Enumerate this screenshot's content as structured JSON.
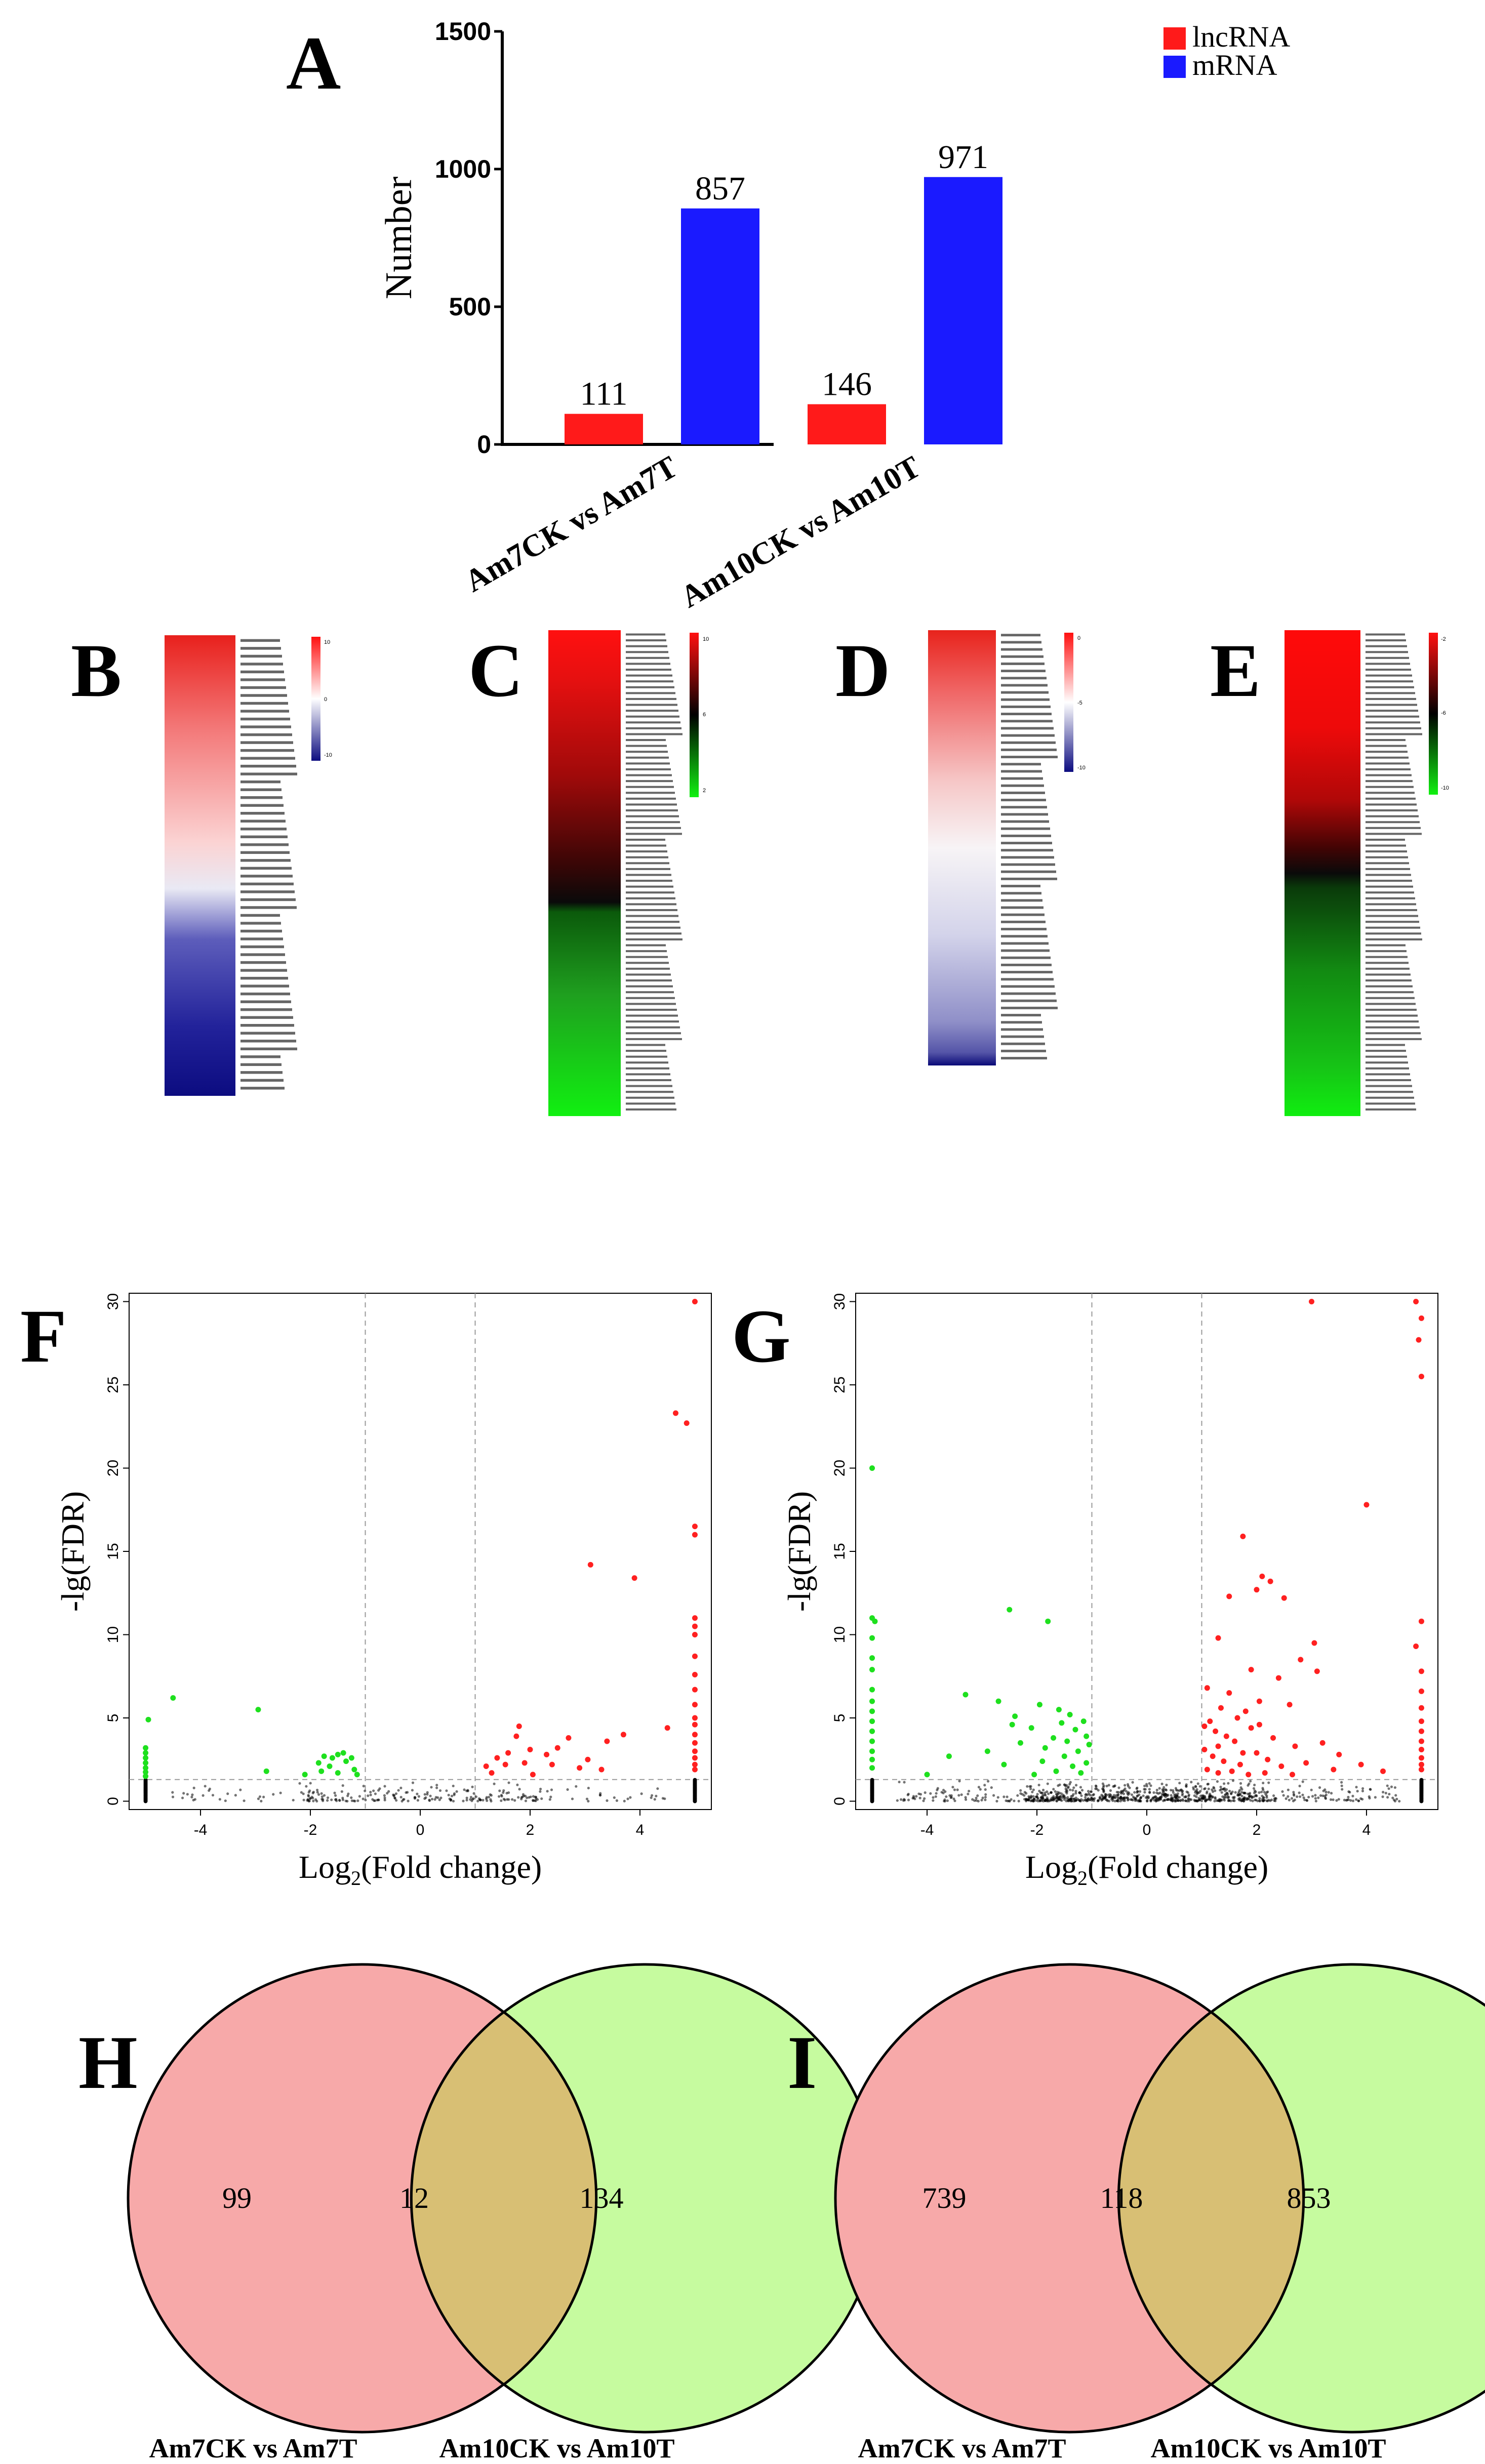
{
  "panel_letters": {
    "a": "A",
    "b": "B",
    "c": "C",
    "d": "D",
    "e": "E",
    "f": "F",
    "g": "G",
    "h": "H",
    "i": "I"
  },
  "chart_data": [
    {
      "panel": "A",
      "type": "bar",
      "categories": [
        "Am7CK vs Am7T",
        "Am10CK vs Am10T"
      ],
      "series": [
        {
          "name": "lncRNA",
          "color": "#ff1a1a",
          "values": [
            111,
            146
          ]
        },
        {
          "name": "mRNA",
          "color": "#1a1aff",
          "values": [
            857,
            971
          ]
        }
      ],
      "ylabel": "Number",
      "ylim": [
        0,
        1500
      ],
      "yticks": [
        "0",
        "500",
        "1000",
        "1500"
      ],
      "data_labels": true,
      "legend": "top-right"
    },
    {
      "panel": "F",
      "type": "scatter",
      "xlabel_main": "Log",
      "xlabel_sub": "2",
      "xlabel_rest": "(Fold change)",
      "ylabel": "-lg(FDR)",
      "xlim": [
        -5.3,
        5.3
      ],
      "ylim": [
        -0.5,
        30.5
      ],
      "xticks": [
        "-4",
        "-2",
        "0",
        "2",
        "4"
      ],
      "yticks": [
        "0",
        "5",
        "10",
        "15",
        "20",
        "25",
        "30"
      ],
      "vlines": [
        -1,
        1
      ],
      "hline": 1.3,
      "colors": {
        "up": "#ff2020",
        "down": "#1ee01e",
        "ns": "#000000"
      },
      "up": [
        [
          5,
          30
        ],
        [
          4.65,
          23.3
        ],
        [
          4.85,
          22.7
        ],
        [
          5,
          16.5
        ],
        [
          5,
          16
        ],
        [
          3.1,
          14.2
        ],
        [
          3.9,
          13.4
        ],
        [
          5,
          11
        ],
        [
          5,
          10.5
        ],
        [
          5,
          10
        ],
        [
          5,
          8.7
        ],
        [
          5,
          7.6
        ],
        [
          5,
          6.7
        ],
        [
          5,
          5.8
        ],
        [
          5,
          5
        ],
        [
          5,
          4.6
        ],
        [
          5,
          4
        ],
        [
          5,
          3.5
        ],
        [
          5,
          3
        ],
        [
          5,
          2.6
        ],
        [
          5,
          2.2
        ],
        [
          5,
          1.9
        ],
        [
          4.5,
          4.4
        ],
        [
          3.7,
          4
        ],
        [
          3.4,
          3.6
        ],
        [
          2.7,
          3.8
        ],
        [
          2.5,
          3.2
        ],
        [
          1.8,
          4.5
        ],
        [
          1.75,
          3.9
        ],
        [
          2,
          3.1
        ],
        [
          1.6,
          2.9
        ],
        [
          2.3,
          2.8
        ],
        [
          3.05,
          2.5
        ],
        [
          1.4,
          2.6
        ],
        [
          1.2,
          2.1
        ],
        [
          2.4,
          2.2
        ],
        [
          1.9,
          2.3
        ],
        [
          2.9,
          2
        ],
        [
          1.55,
          2.2
        ],
        [
          3.3,
          1.9
        ],
        [
          2.05,
          1.6
        ],
        [
          1.3,
          1.7
        ]
      ],
      "down": [
        [
          -4.5,
          6.2
        ],
        [
          -4.95,
          4.9
        ],
        [
          -2.95,
          5.5
        ],
        [
          -5,
          3.2
        ],
        [
          -5,
          2.9
        ],
        [
          -5,
          2.6
        ],
        [
          -5,
          2.3
        ],
        [
          -5,
          2
        ],
        [
          -5,
          1.75
        ],
        [
          -5,
          1.5
        ],
        [
          -1.5,
          2.8
        ],
        [
          -1.6,
          2.6
        ],
        [
          -1.4,
          2.9
        ],
        [
          -1.85,
          2.3
        ],
        [
          -1.65,
          2.1
        ],
        [
          -1.35,
          2.4
        ],
        [
          -1.25,
          2.6
        ],
        [
          -1.8,
          1.8
        ],
        [
          -1.5,
          1.7
        ],
        [
          -1.2,
          1.9
        ],
        [
          -2.1,
          1.6
        ],
        [
          -1.15,
          1.6
        ],
        [
          -2.8,
          1.8
        ],
        [
          -1.75,
          2.7
        ]
      ]
    },
    {
      "panel": "G",
      "type": "scatter",
      "xlabel_main": "Log",
      "xlabel_sub": "2",
      "xlabel_rest": "(Fold change)",
      "ylabel": "-lg(FDR)",
      "xlim": [
        -5.3,
        5.3
      ],
      "ylim": [
        -0.5,
        30.5
      ],
      "xticks": [
        "-4",
        "-2",
        "0",
        "2",
        "4"
      ],
      "yticks": [
        "0",
        "5",
        "10",
        "15",
        "20",
        "25",
        "30"
      ],
      "vlines": [
        -1,
        1
      ],
      "hline": 1.3,
      "colors": {
        "up": "#ff2020",
        "down": "#1ee01e",
        "ns": "#000000"
      },
      "up": [
        [
          3,
          30
        ],
        [
          4.9,
          30
        ],
        [
          5,
          29
        ],
        [
          4.95,
          27.7
        ],
        [
          5,
          25.5
        ],
        [
          4,
          17.8
        ],
        [
          1.75,
          15.9
        ],
        [
          2.1,
          13.5
        ],
        [
          2.25,
          13.2
        ],
        [
          2,
          12.7
        ],
        [
          1.5,
          12.3
        ],
        [
          2.5,
          12.2
        ],
        [
          3.05,
          9.5
        ],
        [
          5,
          10.8
        ],
        [
          1.3,
          9.8
        ],
        [
          2.8,
          8.5
        ],
        [
          1.9,
          7.9
        ],
        [
          3.1,
          7.8
        ],
        [
          2.4,
          7.4
        ],
        [
          1.1,
          6.8
        ],
        [
          1.5,
          6.5
        ],
        [
          2.05,
          6
        ],
        [
          2.6,
          5.8
        ],
        [
          1.35,
          5.6
        ],
        [
          1.8,
          5.4
        ],
        [
          4.9,
          9.3
        ],
        [
          5,
          7.8
        ],
        [
          5,
          6.6
        ],
        [
          5,
          5.6
        ],
        [
          5,
          4.8
        ],
        [
          5,
          4.2
        ],
        [
          5,
          3.6
        ],
        [
          5,
          3.1
        ],
        [
          5,
          2.6
        ],
        [
          5,
          2.2
        ],
        [
          5,
          1.9
        ],
        [
          1.15,
          4.8
        ],
        [
          1.25,
          4.2
        ],
        [
          1.45,
          3.9
        ],
        [
          1.6,
          3.6
        ],
        [
          1.9,
          4.4
        ],
        [
          2.3,
          3.8
        ],
        [
          2.7,
          3.3
        ],
        [
          3.2,
          3.5
        ],
        [
          3.5,
          2.8
        ],
        [
          1.05,
          3.1
        ],
        [
          1.2,
          2.7
        ],
        [
          1.4,
          2.4
        ],
        [
          1.7,
          2.2
        ],
        [
          2,
          2.9
        ],
        [
          2.2,
          2.5
        ],
        [
          2.45,
          2.1
        ],
        [
          2.9,
          2.3
        ],
        [
          1.1,
          1.9
        ],
        [
          1.3,
          1.7
        ],
        [
          1.55,
          1.8
        ],
        [
          1.85,
          1.6
        ],
        [
          2.15,
          1.7
        ],
        [
          2.65,
          1.6
        ],
        [
          3.4,
          1.9
        ],
        [
          3.9,
          2.2
        ],
        [
          4.3,
          1.8
        ],
        [
          1.65,
          5
        ],
        [
          2.05,
          4.6
        ],
        [
          1.05,
          4.5
        ],
        [
          1.3,
          3.3
        ],
        [
          1.75,
          2.9
        ]
      ],
      "down": [
        [
          -5,
          20
        ],
        [
          -5,
          11
        ],
        [
          -4.95,
          10.8
        ],
        [
          -5,
          9.8
        ],
        [
          -5,
          8.6
        ],
        [
          -5,
          7.9
        ],
        [
          -5,
          6.7
        ],
        [
          -5,
          6
        ],
        [
          -5,
          5.4
        ],
        [
          -5,
          4.8
        ],
        [
          -5,
          4.2
        ],
        [
          -5,
          3.6
        ],
        [
          -5,
          3
        ],
        [
          -5,
          2.5
        ],
        [
          -5,
          2
        ],
        [
          -2.5,
          11.5
        ],
        [
          -1.8,
          10.8
        ],
        [
          -3.3,
          6.4
        ],
        [
          -2.7,
          6
        ],
        [
          -2.4,
          5.1
        ],
        [
          -1.95,
          5.8
        ],
        [
          -1.6,
          5.5
        ],
        [
          -1.4,
          5.2
        ],
        [
          -1.15,
          4.8
        ],
        [
          -2.1,
          4.4
        ],
        [
          -1.3,
          4.3
        ],
        [
          -1.7,
          3.8
        ],
        [
          -1.05,
          3.4
        ],
        [
          -1.25,
          3
        ],
        [
          -1.5,
          2.7
        ],
        [
          -2.3,
          3.5
        ],
        [
          -2.9,
          3
        ],
        [
          -3.6,
          2.7
        ],
        [
          -1.1,
          2.3
        ],
        [
          -1.35,
          2.1
        ],
        [
          -1.9,
          2.4
        ],
        [
          -2.6,
          2.2
        ],
        [
          -4,
          1.6
        ],
        [
          -1.2,
          1.7
        ],
        [
          -1.65,
          1.8
        ],
        [
          -2.05,
          1.6
        ],
        [
          -1.45,
          3.6
        ],
        [
          -1.85,
          3.2
        ],
        [
          -1.1,
          3.9
        ],
        [
          -2.45,
          4.6
        ],
        [
          -1.55,
          4.7
        ]
      ]
    }
  ],
  "heatmaps": {
    "b": {
      "scale_top": "10",
      "scale_mid": "0",
      "scale_bot": "-10"
    },
    "c": {
      "scale_top": "10",
      "scale_mid": "6",
      "scale_bot": "2"
    },
    "d": {
      "scale_top": "0",
      "scale_mid": "-5",
      "scale_bot": "-10"
    },
    "e": {
      "scale_top": "-2",
      "scale_mid": "-6",
      "scale_bot": "-10"
    }
  },
  "venn_h": {
    "left": "99",
    "mid": "12",
    "right": "134",
    "label_left": "Am7CK vs Am7T",
    "label_right": "Am10CK vs Am10T"
  },
  "venn_i": {
    "left": "739",
    "mid": "118",
    "right": "853",
    "label_left": "Am7CK vs Am7T",
    "label_right": "Am10CK vs Am10T"
  }
}
